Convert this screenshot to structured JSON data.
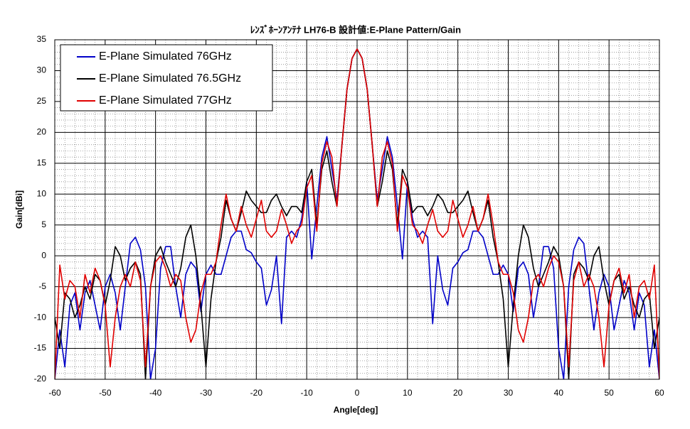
{
  "chart_data": {
    "type": "line",
    "title": "ﾚﾝｽﾞﾎｰﾝｱﾝﾃﾅ  LH76-B  設計値:E-Plane Pattern/Gain",
    "x_label": "Angle[deg]",
    "y_label": "Gain[dBi]",
    "xlim": [
      -60,
      60
    ],
    "ylim": [
      -20,
      35
    ],
    "xticks": [
      -60,
      -50,
      -40,
      -30,
      -20,
      -10,
      0,
      10,
      20,
      30,
      40,
      50,
      60
    ],
    "yticks": [
      -20,
      -15,
      -10,
      -5,
      0,
      5,
      10,
      15,
      20,
      25,
      30,
      35
    ],
    "grid": true,
    "legend": "upper left",
    "x": [
      -60,
      -59,
      -58,
      -57,
      -56,
      -55,
      -54,
      -53,
      -52,
      -51,
      -50,
      -49,
      -48,
      -47,
      -46,
      -45,
      -44,
      -43,
      -42,
      -41,
      -40,
      -39,
      -38,
      -37,
      -36,
      -35,
      -34,
      -33,
      -32,
      -31,
      -30,
      -29,
      -28,
      -27,
      -26,
      -25,
      -24,
      -23,
      -22,
      -21,
      -20,
      -19,
      -18,
      -17,
      -16,
      -15,
      -14,
      -13,
      -12,
      -11,
      -10,
      -9,
      -8,
      -7,
      -6,
      -5,
      -4,
      -3,
      -2,
      -1,
      0,
      1,
      2,
      3,
      4,
      5,
      6,
      7,
      8,
      9,
      10,
      11,
      12,
      13,
      14,
      15,
      16,
      17,
      18,
      19,
      20,
      21,
      22,
      23,
      24,
      25,
      26,
      27,
      28,
      29,
      30,
      31,
      32,
      33,
      34,
      35,
      36,
      37,
      38,
      39,
      40,
      41,
      42,
      43,
      44,
      45,
      46,
      47,
      48,
      49,
      50,
      51,
      52,
      53,
      54,
      55,
      56,
      57,
      58,
      59,
      60
    ],
    "series": [
      {
        "name": "E-Plane Simulated 76GHz",
        "color": "#0000c8",
        "values": [
          -20,
          -12,
          -18,
          -8,
          -6,
          -12,
          -6,
          -4,
          -8,
          -12,
          -5,
          -3,
          -6,
          -12,
          -5,
          2,
          3,
          1,
          -5,
          -20,
          -15,
          -2,
          1.5,
          1.5,
          -5,
          -10,
          -3,
          -1,
          -2,
          -9,
          -3,
          -1.5,
          -3,
          -3,
          0,
          3,
          4,
          4,
          1,
          0.5,
          -1,
          -2,
          -8,
          -5.5,
          0,
          -11,
          3,
          4,
          3,
          6,
          12,
          -0.5,
          8,
          16,
          19.3,
          14,
          9,
          18,
          27,
          32,
          33.5,
          32,
          27,
          18,
          9,
          14,
          19.3,
          16,
          8,
          -0.5,
          12,
          6,
          3,
          4,
          3,
          -11,
          0,
          -5.5,
          -8,
          -2,
          -1,
          0.5,
          1,
          4,
          4,
          3,
          0,
          -3,
          -3,
          -1.5,
          -3,
          -9,
          -2,
          -1,
          -3,
          -10,
          -5,
          1.5,
          1.5,
          -2,
          -15,
          -20,
          -5,
          1,
          3,
          2,
          -5,
          -12,
          -6,
          -3,
          -5,
          -12,
          -8,
          -4,
          -6,
          -12,
          -6,
          -8,
          -18,
          -12,
          -20
        ]
      },
      {
        "name": "E-Plane Simulated 76.5GHz",
        "color": "#000000",
        "values": [
          -10,
          -15,
          -6,
          -7,
          -10,
          -8,
          -5,
          -7,
          -3,
          -4,
          -8,
          -4,
          1.5,
          0,
          -4,
          -2,
          -1,
          -3,
          -20,
          -5,
          0,
          1.5,
          -1,
          -3,
          -5,
          -2,
          3,
          5,
          0,
          -8,
          -18,
          -7,
          -1,
          3,
          9,
          6,
          4,
          7,
          10.5,
          9,
          8,
          7,
          7,
          9,
          10,
          8,
          6.5,
          8,
          8,
          7,
          12,
          14,
          5,
          14,
          17,
          12,
          8,
          18,
          27,
          32,
          33.5,
          32,
          27,
          18,
          8,
          12,
          17,
          14,
          5,
          14,
          12,
          7,
          8,
          8,
          6.5,
          8,
          10,
          9,
          7,
          7,
          8,
          9,
          10.5,
          7,
          4,
          6,
          9,
          3,
          -1,
          -7,
          -18,
          -8,
          0,
          5,
          3,
          -2,
          -5,
          -3,
          -1,
          1.5,
          0,
          -5,
          -20,
          -3,
          -1,
          -2,
          -4,
          0,
          1.5,
          -4,
          -8,
          -4,
          -3,
          -7,
          -5,
          -8,
          -10,
          -7,
          -6,
          -15,
          -10
        ]
      },
      {
        "name": "E-Plane Simulated 77GHz",
        "color": "#e00000",
        "values": [
          -20,
          -1.5,
          -7,
          -4,
          -5,
          -10,
          -3,
          -6,
          -2,
          -4,
          -8,
          -18,
          -10,
          -5,
          -3,
          -5,
          -1,
          -4,
          -18,
          -5,
          -1,
          0,
          -2,
          -5,
          -3,
          -4,
          -10,
          -14,
          -12,
          -6,
          -3,
          -3,
          -1,
          5,
          10,
          6,
          4,
          8,
          5,
          3,
          6,
          9,
          4,
          3,
          4,
          7.5,
          5,
          2,
          4,
          5,
          11,
          13,
          4,
          15,
          18.5,
          16,
          8,
          18,
          27,
          32,
          33.5,
          32,
          27,
          18,
          8,
          16,
          18.5,
          15,
          4,
          13,
          11,
          5,
          4,
          2,
          5,
          7.5,
          4,
          3,
          4,
          9,
          6,
          3,
          5,
          8,
          4,
          6,
          10,
          5,
          -1,
          -3,
          -3,
          -6,
          -12,
          -14,
          -10,
          -4,
          -3,
          -5,
          -2,
          0,
          -1,
          -5,
          -18,
          -4,
          -1,
          -5,
          -3,
          -5,
          -10,
          -18,
          -8,
          -4,
          -2,
          -6,
          -3,
          -10,
          -5,
          -4,
          -7,
          -1.5,
          -20
        ]
      }
    ]
  }
}
